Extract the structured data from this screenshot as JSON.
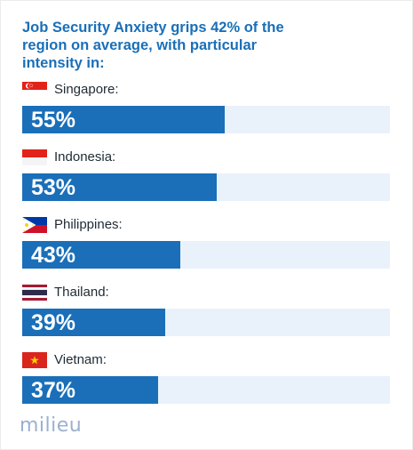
{
  "chart_data": {
    "type": "bar",
    "title": "Job Security Anxiety grips 42% of the region on average, with particular intensity in:",
    "categories": [
      "Singapore:",
      "Indonesia:",
      "Philippines:",
      "Thailand:",
      "Vietnam:"
    ],
    "values": [
      55,
      53,
      43,
      39,
      37
    ],
    "value_labels": [
      "55%",
      "53%",
      "43%",
      "39%",
      "37%"
    ],
    "flags": [
      "singapore-flag-icon",
      "indonesia-flag-icon",
      "philippines-flag-icon",
      "thailand-flag-icon",
      "vietnam-flag-icon"
    ],
    "orientation": "horizontal",
    "xlim": [
      0,
      100
    ],
    "grid": false,
    "bar_color": "#1a6fb8",
    "track_color": "#e9f1fb"
  },
  "branding": {
    "logo_text": "milieu",
    "logo_color": "#9bb0cf"
  },
  "colors": {
    "title": "#1a6fb8"
  }
}
